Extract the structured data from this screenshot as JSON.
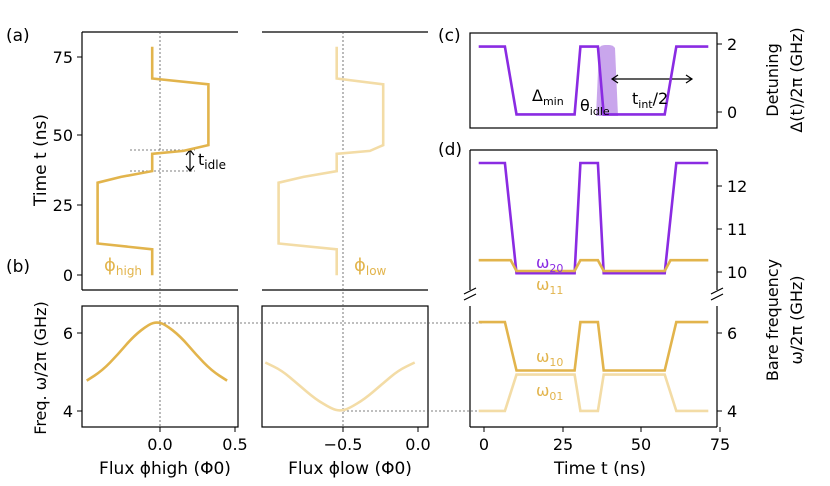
{
  "labels": {
    "a": "(a)",
    "b": "(b)",
    "c": "(c)",
    "d": "(d)",
    "phi_high": "ϕ",
    "phi_high_sub": "high",
    "phi_low": "ϕ",
    "phi_low_sub": "low",
    "t_idle": "t",
    "t_idle_sub": "idle",
    "delta_min": "Δ",
    "delta_min_sub": "min",
    "theta_idle": "θ",
    "theta_idle_sub": "idle",
    "t_int": "t",
    "t_int_sub": "int",
    "t_int_tail": "/2",
    "w20": "ω",
    "w20_sub": "20",
    "w11": "ω",
    "w11_sub": "11",
    "w10": "ω",
    "w10_sub": "10",
    "w01": "ω",
    "w01_sub": "01"
  },
  "axes": {
    "time_ylabel": "Time t (ns)",
    "freq_ylabel": "Freq. ω/2π (GHz)",
    "flux_high_xlabel": "Flux ϕhigh (Φ0)",
    "flux_low_xlabel": "Flux ϕlow (Φ0)",
    "time_xlabel": "Time t (ns)",
    "detuning_ylabel_1": "Detuning",
    "detuning_ylabel_2": "Δ(t)/2π (GHz)",
    "bare_ylabel_1": "Bare frequency",
    "bare_ylabel_2": "ω/2π (GHz)"
  },
  "ticks": {
    "time_y": [
      "0",
      "25",
      "50",
      "75"
    ],
    "freq_y": [
      "4",
      "6"
    ],
    "flux_high_x": [
      "0.0",
      "0.5"
    ],
    "flux_low_x": [
      "−0.5",
      "0.0"
    ],
    "time_x": [
      "0",
      "25",
      "50",
      "75"
    ],
    "detuning_y": [
      "0",
      "2"
    ],
    "bare_upper_y": [
      "10",
      "11",
      "12"
    ],
    "bare_lower_y": [
      "4",
      "6"
    ]
  },
  "colors": {
    "gold": "#e2b44c",
    "light_gold": "#f3dca6",
    "purple": "#8a2be2",
    "purple_fill": "#c9a6ec"
  },
  "chart_data": [
    {
      "panel": "a-left",
      "type": "line",
      "xlabel": "Flux ϕhigh (Φ0)",
      "ylabel": "Time t (ns)",
      "series": [
        {
          "name": "ϕhigh",
          "points": [
            [
              0,
              0
            ],
            [
              0,
              9
            ],
            [
              -0.35,
              11
            ],
            [
              -0.35,
              32
            ],
            [
              -0.2,
              34
            ],
            [
              0,
              36
            ],
            [
              0,
              42
            ],
            [
              0.2,
              43
            ],
            [
              0.36,
              45
            ],
            [
              0.36,
              66
            ],
            [
              0,
              68
            ],
            [
              0,
              79
            ]
          ]
        }
      ],
      "xlim": [
        -0.45,
        0.55
      ],
      "ylim": [
        -3,
        82
      ]
    },
    {
      "panel": "a-right",
      "type": "line",
      "xlabel": "Flux ϕlow (Φ0)",
      "series": [
        {
          "name": "ϕlow",
          "points": [
            [
              -0.5,
              0
            ],
            [
              -0.5,
              9
            ],
            [
              -0.85,
              11
            ],
            [
              -0.85,
              32
            ],
            [
              -0.7,
              34
            ],
            [
              -0.5,
              36
            ],
            [
              -0.5,
              42
            ],
            [
              -0.3,
              43
            ],
            [
              -0.22,
              45
            ],
            [
              -0.22,
              66
            ],
            [
              -0.5,
              68
            ],
            [
              -0.5,
              79
            ]
          ]
        }
      ],
      "xlim": [
        -0.95,
        0.05
      ],
      "ylim": [
        -3,
        82
      ]
    },
    {
      "panel": "b-left",
      "type": "line",
      "ylabel": "Freq. ω/2π (GHz)",
      "series": [
        {
          "name": "ϕhigh",
          "x": [
            -0.45,
            -0.35,
            -0.25,
            -0.15,
            -0.05,
            0,
            0.05,
            0.15,
            0.25,
            0.35,
            0.45
          ],
          "values": [
            4.85,
            5.1,
            5.5,
            5.95,
            6.25,
            6.3,
            6.25,
            5.95,
            5.5,
            5.1,
            4.85
          ]
        }
      ],
      "xlim": [
        -0.48,
        0.52
      ],
      "ylim": [
        3.7,
        6.7
      ]
    },
    {
      "panel": "b-right",
      "type": "line",
      "series": [
        {
          "name": "ϕlow",
          "x": [
            -0.95,
            -0.85,
            -0.75,
            -0.65,
            -0.55,
            -0.5,
            -0.45,
            -0.35,
            -0.25,
            -0.15,
            -0.05
          ],
          "values": [
            5.3,
            5.1,
            4.75,
            4.4,
            4.15,
            4.1,
            4.15,
            4.4,
            4.75,
            5.1,
            5.3
          ]
        }
      ],
      "xlim": [
        -0.97,
        0.03
      ],
      "ylim": [
        3.7,
        6.7
      ]
    },
    {
      "panel": "c",
      "type": "line",
      "ylabel": "Detuning Δ(t)/2π (GHz)",
      "series": [
        {
          "name": "Δ(t)",
          "points": [
            [
              0,
              2
            ],
            [
              9,
              2
            ],
            [
              13,
              0
            ],
            [
              33,
              0
            ],
            [
              35,
              2
            ],
            [
              41,
              2
            ],
            [
              43,
              0
            ],
            [
              64,
              0
            ],
            [
              68,
              2
            ],
            [
              79,
              2
            ]
          ]
        }
      ],
      "xlim": [
        -3,
        82
      ],
      "ylim": [
        -0.4,
        2.4
      ]
    },
    {
      "panel": "d",
      "type": "line",
      "xlabel": "Time t (ns)",
      "ylabel": "Bare frequency ω/2π (GHz)",
      "series": [
        {
          "name": "ω20",
          "points": [
            [
              0,
              12.6
            ],
            [
              9,
              12.6
            ],
            [
              13,
              10.05
            ],
            [
              33,
              10.05
            ],
            [
              35,
              12.6
            ],
            [
              41,
              12.6
            ],
            [
              43,
              10.05
            ],
            [
              64,
              10.05
            ],
            [
              68,
              12.6
            ],
            [
              79,
              12.6
            ]
          ]
        },
        {
          "name": "ω11",
          "points": [
            [
              0,
              10.35
            ],
            [
              11,
              10.35
            ],
            [
              13,
              10.1
            ],
            [
              33,
              10.1
            ],
            [
              35,
              10.35
            ],
            [
              41,
              10.35
            ],
            [
              43,
              10.1
            ],
            [
              64,
              10.1
            ],
            [
              66,
              10.35
            ],
            [
              79,
              10.35
            ]
          ]
        },
        {
          "name": "ω10",
          "points": [
            [
              0,
              6.3
            ],
            [
              9,
              6.3
            ],
            [
              13,
              5.1
            ],
            [
              33,
              5.1
            ],
            [
              35,
              6.3
            ],
            [
              41,
              6.3
            ],
            [
              43,
              5.1
            ],
            [
              64,
              5.1
            ],
            [
              68,
              6.3
            ],
            [
              79,
              6.3
            ]
          ]
        },
        {
          "name": "ω01",
          "points": [
            [
              0,
              4.1
            ],
            [
              9,
              4.1
            ],
            [
              13,
              5.0
            ],
            [
              33,
              5.0
            ],
            [
              35,
              4.1
            ],
            [
              41,
              4.1
            ],
            [
              43,
              5.0
            ],
            [
              64,
              5.0
            ],
            [
              68,
              4.1
            ],
            [
              79,
              4.1
            ]
          ]
        }
      ],
      "xlim": [
        -3,
        82
      ]
    }
  ]
}
